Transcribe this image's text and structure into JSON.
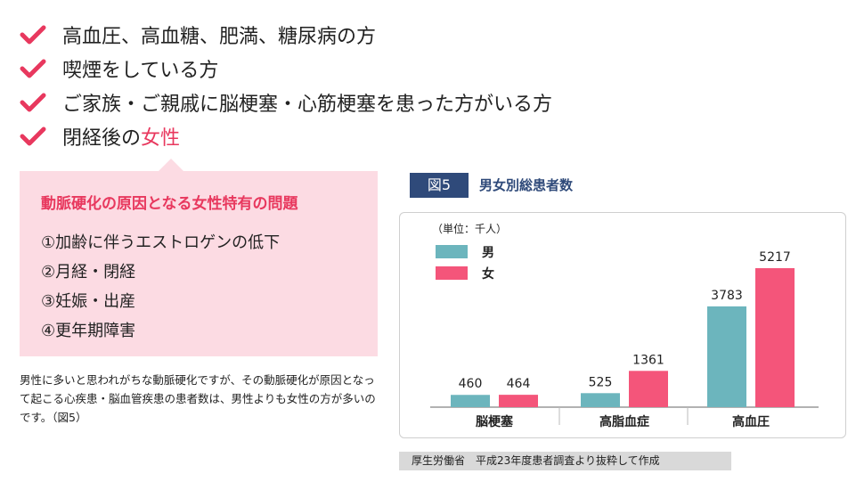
{
  "checklist": {
    "items": [
      {
        "text": "高血圧、高血糖、肥満、糖尿病の方",
        "highlight": ""
      },
      {
        "text": "喫煙をしている方",
        "highlight": ""
      },
      {
        "text": "ご家族・ご親戚に脳梗塞・心筋梗塞を患った方がいる方",
        "highlight": ""
      },
      {
        "text": "閉経後の",
        "highlight": "女性"
      }
    ],
    "check_color": "#e8385e"
  },
  "callout": {
    "title": "動脈硬化の原因となる女性特有の問題",
    "items": [
      "①加齢に伴うエストロゲンの低下",
      "②月経・閉経",
      "③妊娠・出産",
      "④更年期障害"
    ]
  },
  "note": "男性に多いと思われがちな動脈硬化ですが、その動脈硬化が原因となって起こる心疾患・脳血管疾患の患者数は、男性よりも女性の方が多いのです。（図5）",
  "figure": {
    "label": "図5",
    "title": "男女別総患者数",
    "source": "厚生労働省　平成23年度患者調査より抜粋して作成"
  },
  "chart_data": {
    "type": "bar",
    "unit_label": "（単位：千人）",
    "categories": [
      "脳梗塞",
      "高脂血症",
      "高血圧"
    ],
    "series": [
      {
        "name": "男",
        "values": [
          460,
          525,
          3783
        ],
        "color": "#6cb5bd"
      },
      {
        "name": "女",
        "values": [
          464,
          1361,
          5217
        ],
        "color": "#f4557a"
      }
    ],
    "ylim": [
      0,
      5217
    ],
    "legend": "top-left",
    "grid": false
  }
}
